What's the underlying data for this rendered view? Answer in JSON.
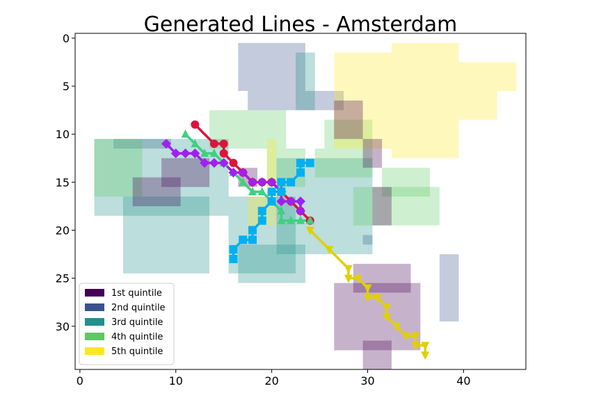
{
  "chart_data": {
    "type": "scatter",
    "title": "Generated Lines - Amsterdam",
    "xlabel": "",
    "ylabel": "",
    "xlim": [
      -0.5,
      46.5
    ],
    "ylim": [
      34.5,
      -0.5
    ],
    "xticks": [
      0,
      10,
      20,
      30,
      40
    ],
    "yticks": [
      0,
      5,
      10,
      15,
      20,
      25,
      30
    ],
    "xtick_labels": [
      "0",
      "10",
      "20",
      "30",
      "40"
    ],
    "ytick_labels": [
      "0",
      "5",
      "10",
      "15",
      "20",
      "25",
      "30"
    ],
    "grid": false,
    "legend": {
      "placement": "lower-left",
      "entries": [
        {
          "label": "1st quintile",
          "color": "#440154"
        },
        {
          "label": "2nd quintile",
          "color": "#3b528b"
        },
        {
          "label": "3rd quintile",
          "color": "#21918c"
        },
        {
          "label": "4th quintile",
          "color": "#5ec962"
        },
        {
          "label": "5th quintile",
          "color": "#fde725"
        }
      ]
    },
    "background_regions": [
      {
        "quintile": 2,
        "color": "#3b528b",
        "opacity": 0.3,
        "cells": [
          [
            17,
            1,
            24,
            6
          ],
          [
            18,
            6,
            26,
            8
          ],
          [
            26,
            6,
            28,
            8
          ],
          [
            4,
            11,
            10,
            12
          ],
          [
            30,
            21,
            31,
            22
          ],
          [
            38,
            23,
            40,
            30
          ]
        ]
      },
      {
        "quintile": 3,
        "color": "#21918c",
        "opacity": 0.3,
        "cells": [
          [
            23,
            2,
            25,
            8
          ],
          [
            2,
            11,
            16,
            19
          ],
          [
            5,
            17,
            14,
            25
          ],
          [
            16,
            17,
            23,
            25
          ],
          [
            17,
            22,
            24,
            26
          ],
          [
            21,
            13,
            31,
            23
          ]
        ]
      },
      {
        "quintile": 4,
        "color": "#5ec962",
        "opacity": 0.3,
        "cells": [
          [
            14,
            8,
            22,
            12
          ],
          [
            20,
            12,
            24,
            16
          ],
          [
            26,
            9,
            31,
            12
          ],
          [
            25,
            12,
            31,
            15
          ],
          [
            32,
            14,
            37,
            17
          ],
          [
            29,
            16,
            38,
            20
          ],
          [
            2,
            11,
            7,
            17
          ]
        ]
      },
      {
        "quintile": 5,
        "color": "#fde725",
        "opacity": 0.3,
        "cells": [
          [
            27,
            2,
            33,
            12
          ],
          [
            33,
            1,
            40,
            13
          ],
          [
            40,
            3,
            46,
            6
          ],
          [
            40,
            6,
            44,
            9
          ],
          [
            18,
            17,
            21,
            20
          ],
          [
            20,
            11,
            21,
            16
          ]
        ]
      },
      {
        "quintile": 1,
        "color": "#440154",
        "opacity": 0.3,
        "cells": [
          [
            6,
            15,
            11,
            18
          ],
          [
            27,
            7,
            30,
            11
          ],
          [
            30,
            11,
            32,
            14
          ],
          [
            31,
            16,
            33,
            20
          ],
          [
            27,
            26,
            36,
            33
          ],
          [
            29,
            24,
            35,
            27
          ],
          [
            30,
            32,
            33,
            35
          ],
          [
            9,
            13,
            14,
            16
          ],
          [
            17,
            14,
            19,
            16
          ]
        ]
      }
    ],
    "series": [
      {
        "color": "#dc143c",
        "marker": "circle",
        "x": [
          12,
          14,
          15,
          15,
          16,
          17,
          18,
          19,
          20,
          21,
          22,
          23,
          24
        ],
        "y": [
          9,
          11,
          11,
          12,
          13,
          14,
          15,
          15,
          15,
          16,
          17,
          18,
          19
        ]
      },
      {
        "color": "#40d080",
        "marker": "triangle-up",
        "x": [
          11,
          12,
          13,
          14,
          15,
          16,
          17,
          18,
          19,
          20,
          21,
          21,
          22,
          23,
          24
        ],
        "y": [
          10,
          11,
          12,
          12,
          13,
          14,
          15,
          16,
          16,
          17,
          18,
          19,
          19,
          19,
          19
        ]
      },
      {
        "color": "#a020f0",
        "marker": "diamond",
        "x": [
          9,
          10,
          11,
          12,
          13,
          14,
          15,
          16,
          17,
          18,
          19,
          20,
          21,
          21,
          22,
          23,
          23
        ],
        "y": [
          11,
          12,
          12,
          12,
          13,
          13,
          13,
          14,
          14,
          15,
          15,
          15,
          16,
          17,
          17,
          17,
          18
        ]
      },
      {
        "color": "#00b0f0",
        "marker": "square",
        "x": [
          24,
          23,
          23,
          22,
          21,
          21,
          20,
          20,
          19,
          19,
          18,
          18,
          17,
          16,
          16,
          16
        ],
        "y": [
          13,
          13,
          14,
          15,
          15,
          16,
          16,
          17,
          18,
          19,
          20,
          21,
          21,
          22,
          23,
          22
        ]
      },
      {
        "color": "#e0d000",
        "marker": "triangle-down",
        "x": [
          24,
          26,
          28,
          28,
          29,
          30,
          30,
          31,
          32,
          32,
          33,
          34,
          35,
          35,
          36,
          36
        ],
        "y": [
          20,
          22,
          24,
          25,
          25,
          26,
          27,
          27,
          28,
          29,
          30,
          31,
          31,
          32,
          32,
          33
        ]
      }
    ]
  }
}
